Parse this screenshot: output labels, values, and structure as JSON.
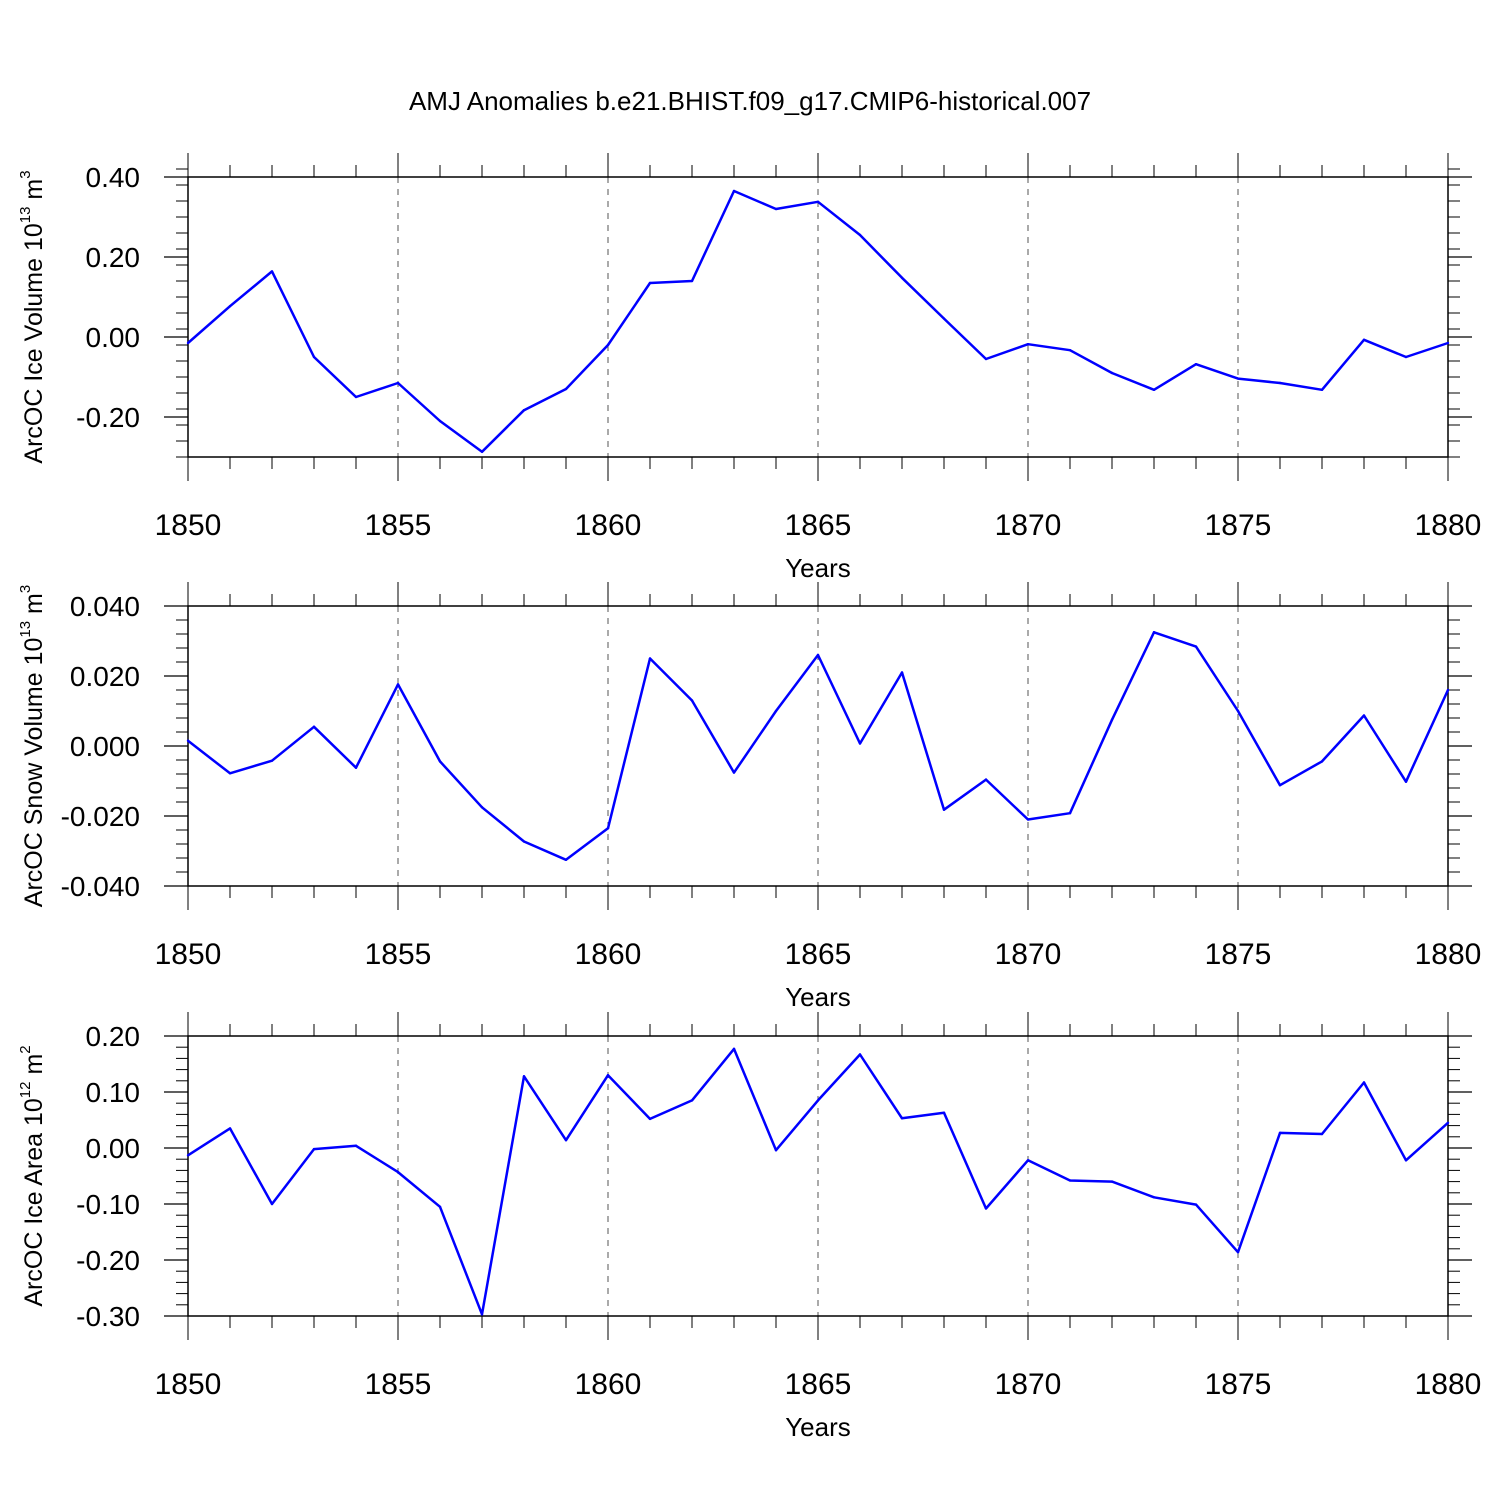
{
  "title": "AMJ Anomalies b.e21.BHIST.f09_g17.CMIP6-historical.007",
  "chart_data": [
    {
      "type": "line",
      "xlabel": "Years",
      "ylabel": {
        "text": "ArcOC Ice Volume 10",
        "exp": "13",
        "unit": " m",
        "unit_exp": "3"
      },
      "xlim": [
        1850,
        1880
      ],
      "ylim": [
        -0.3,
        0.4
      ],
      "x_ticks": [
        1850,
        1855,
        1860,
        1865,
        1870,
        1875,
        1880
      ],
      "y_ticks": [
        0.4,
        0.2,
        0.0,
        -0.2
      ],
      "y_tick_labels": [
        "0.40",
        "0.20",
        "0.00",
        "-0.20"
      ],
      "y_minor_step": 0.04,
      "grid_x_dashed": [
        1855,
        1860,
        1865,
        1870,
        1875
      ],
      "line_color": "#0000ff",
      "x": [
        1850,
        1851,
        1852,
        1853,
        1854,
        1855,
        1856,
        1857,
        1858,
        1859,
        1860,
        1861,
        1862,
        1863,
        1864,
        1865,
        1866,
        1867,
        1868,
        1869,
        1870,
        1871,
        1872,
        1873,
        1874,
        1875,
        1876,
        1877,
        1878,
        1879,
        1880
      ],
      "values": [
        -0.015,
        0.077,
        0.164,
        -0.05,
        -0.15,
        -0.115,
        -0.21,
        -0.287,
        -0.183,
        -0.13,
        -0.02,
        0.135,
        0.14,
        0.365,
        0.32,
        0.338,
        0.255,
        0.148,
        0.046,
        -0.055,
        -0.018,
        -0.033,
        -0.09,
        -0.132,
        -0.068,
        -0.104,
        -0.115,
        -0.132,
        -0.007,
        -0.05,
        -0.015
      ]
    },
    {
      "type": "line",
      "xlabel": "Years",
      "ylabel": {
        "text": "ArcOC Snow Volume 10",
        "exp": "13",
        "unit": " m",
        "unit_exp": "3"
      },
      "xlim": [
        1850,
        1880
      ],
      "ylim": [
        -0.04,
        0.04
      ],
      "x_ticks": [
        1850,
        1855,
        1860,
        1865,
        1870,
        1875,
        1880
      ],
      "y_ticks": [
        0.04,
        0.02,
        0.0,
        -0.02,
        -0.04
      ],
      "y_tick_labels": [
        "0.040",
        "0.020",
        "0.000",
        "-0.020",
        "-0.040"
      ],
      "y_minor_step": 0.004,
      "grid_x_dashed": [
        1855,
        1860,
        1865,
        1870,
        1875
      ],
      "line_color": "#0000ff",
      "x": [
        1850,
        1851,
        1852,
        1853,
        1854,
        1855,
        1856,
        1857,
        1858,
        1859,
        1860,
        1861,
        1862,
        1863,
        1864,
        1865,
        1866,
        1867,
        1868,
        1869,
        1870,
        1871,
        1872,
        1873,
        1874,
        1875,
        1876,
        1877,
        1878,
        1879,
        1880
      ],
      "values": [
        0.0015,
        -0.0078,
        -0.0042,
        0.0055,
        -0.0062,
        0.0176,
        -0.0044,
        -0.0175,
        -0.0273,
        -0.0325,
        -0.0235,
        0.025,
        0.013,
        -0.0076,
        0.01,
        0.026,
        0.0007,
        0.021,
        -0.0182,
        -0.0096,
        -0.021,
        -0.0192,
        0.0075,
        0.0325,
        0.0284,
        0.01,
        -0.0112,
        -0.0044,
        0.0087,
        -0.0102,
        0.016
      ]
    },
    {
      "type": "line",
      "xlabel": "Years",
      "ylabel": {
        "text": "ArcOC Ice Area 10",
        "exp": "12",
        "unit": " m",
        "unit_exp": "2"
      },
      "xlim": [
        1850,
        1880
      ],
      "ylim": [
        -0.3,
        0.2
      ],
      "x_ticks": [
        1850,
        1855,
        1860,
        1865,
        1870,
        1875,
        1880
      ],
      "y_ticks": [
        0.2,
        0.1,
        0.0,
        -0.1,
        -0.2,
        -0.3
      ],
      "y_tick_labels": [
        "0.20",
        "0.10",
        "0.00",
        "-0.10",
        "-0.20",
        "-0.30"
      ],
      "y_minor_step": 0.02,
      "grid_x_dashed": [
        1855,
        1860,
        1865,
        1870,
        1875
      ],
      "line_color": "#0000ff",
      "x": [
        1850,
        1851,
        1852,
        1853,
        1854,
        1855,
        1856,
        1857,
        1858,
        1859,
        1860,
        1861,
        1862,
        1863,
        1864,
        1865,
        1866,
        1867,
        1868,
        1869,
        1870,
        1871,
        1872,
        1873,
        1874,
        1875,
        1876,
        1877,
        1878,
        1879,
        1880
      ],
      "values": [
        -0.013,
        0.035,
        -0.1,
        -0.002,
        0.004,
        -0.043,
        -0.105,
        -0.297,
        0.128,
        0.014,
        0.13,
        0.052,
        0.085,
        0.177,
        -0.004,
        0.085,
        0.167,
        0.053,
        0.063,
        -0.108,
        -0.022,
        -0.058,
        -0.06,
        -0.088,
        -0.101,
        -0.186,
        0.027,
        0.025,
        0.117,
        -0.022,
        0.045
      ]
    }
  ]
}
